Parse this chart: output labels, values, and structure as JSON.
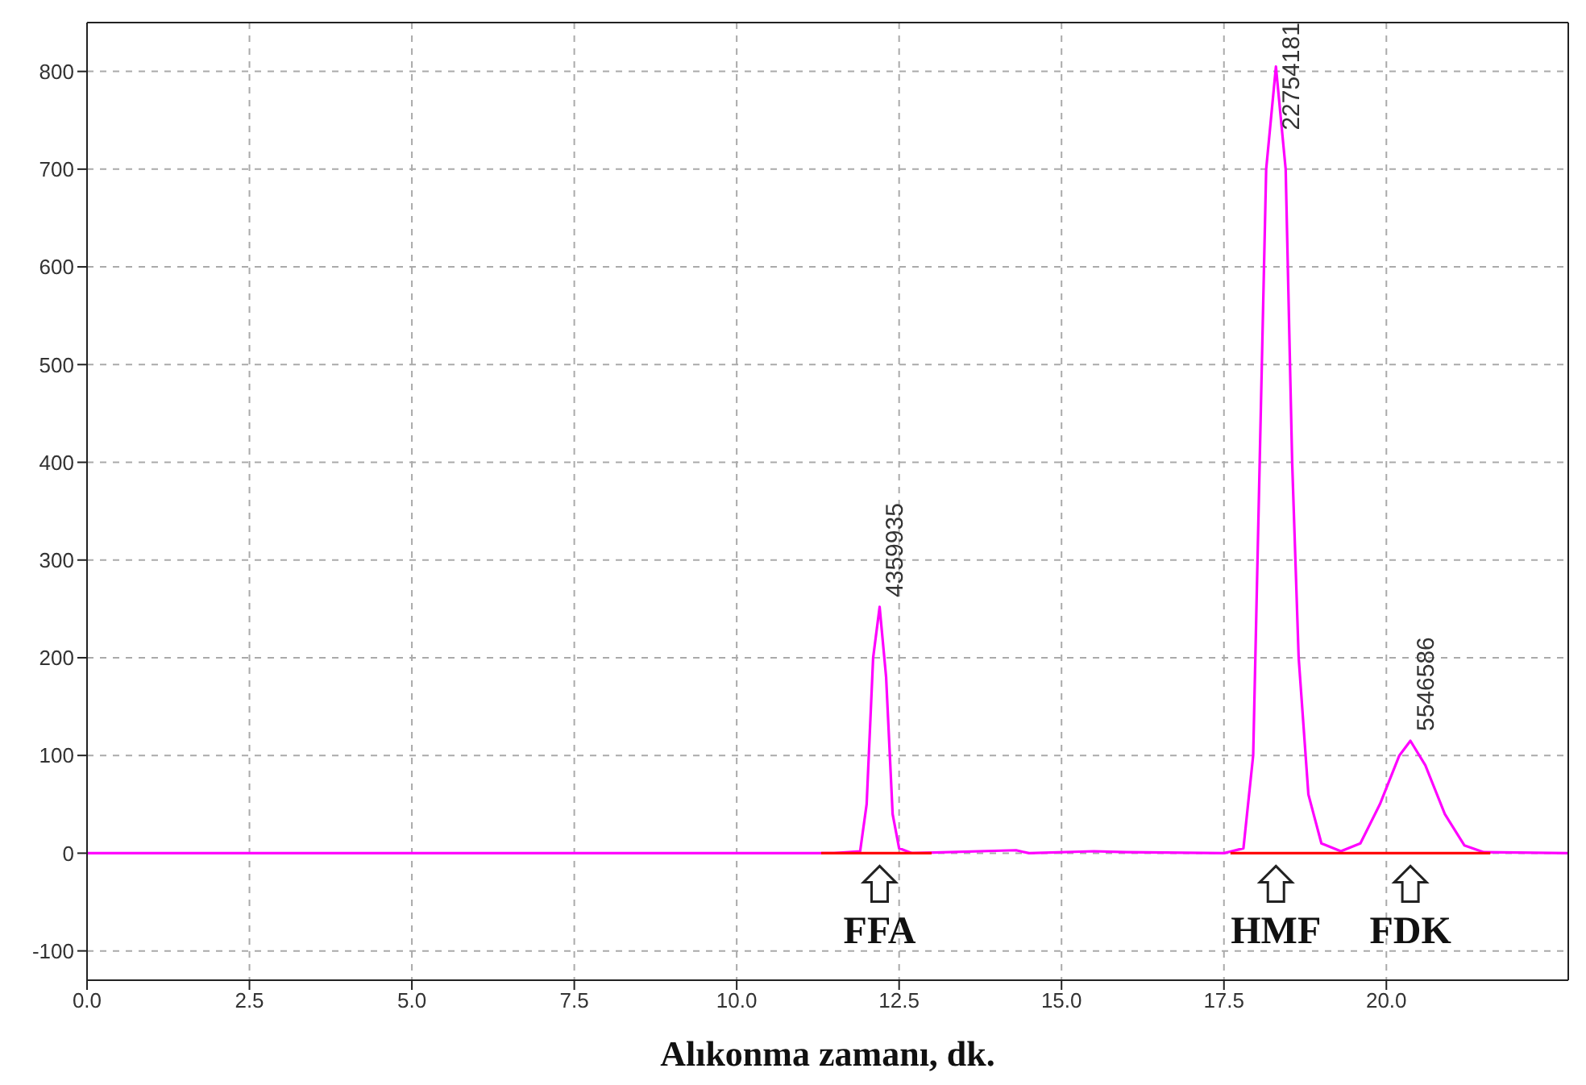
{
  "chart_data": {
    "type": "line",
    "xlabel": "Alıkonma zamanı, dk.",
    "xlim": [
      0,
      22.8
    ],
    "ylim": [
      -130,
      850
    ],
    "xticks": [
      {
        "value": 0,
        "label": "0.0"
      },
      {
        "value": 2.5,
        "label": "2.5"
      },
      {
        "value": 5,
        "label": "5.0"
      },
      {
        "value": 7.5,
        "label": "7.5"
      },
      {
        "value": 10,
        "label": "10.0"
      },
      {
        "value": 12.5,
        "label": "12.5"
      },
      {
        "value": 15,
        "label": "15.0"
      },
      {
        "value": 17.5,
        "label": "17.5"
      },
      {
        "value": 20,
        "label": "20.0"
      }
    ],
    "yticks": [
      -100,
      0,
      100,
      200,
      300,
      400,
      500,
      600,
      700,
      800
    ],
    "grid": true,
    "legend": false,
    "marker": "none",
    "line_style": "solid",
    "series": [
      {
        "color": "#ff00ff",
        "x": [
          0,
          11.5,
          11.9,
          12.0,
          12.1,
          12.2,
          12.3,
          12.4,
          12.5,
          12.7,
          14.3,
          14.5,
          15.5,
          16,
          17.5,
          17.8,
          17.95,
          18.05,
          18.15,
          18.3,
          18.45,
          18.55,
          18.65,
          18.8,
          19.0,
          19.3,
          19.6,
          19.9,
          20.2,
          20.37,
          20.6,
          20.9,
          21.2,
          21.5,
          22.8
        ],
        "values": [
          0,
          0,
          2,
          50,
          200,
          252,
          180,
          40,
          5,
          0,
          3,
          0,
          2,
          1,
          0,
          5,
          100,
          400,
          700,
          805,
          700,
          400,
          200,
          60,
          10,
          2,
          10,
          50,
          100,
          115,
          90,
          40,
          8,
          1,
          0
        ]
      },
      {
        "color": "#ff0000",
        "x": [
          11.3,
          13.0,
          13.1,
          17.6,
          19.3,
          21.6
        ],
        "values": [
          0,
          0,
          null,
          0,
          0,
          0
        ]
      }
    ],
    "annotations": [
      {
        "text": "4359935",
        "x": 12.2,
        "y": 252
      },
      {
        "text": "22754181",
        "x": 18.3,
        "y": 805
      },
      {
        "text": "5546586",
        "x": 20.37,
        "y": 115
      },
      "FFA",
      "HMF",
      "FDK"
    ]
  }
}
